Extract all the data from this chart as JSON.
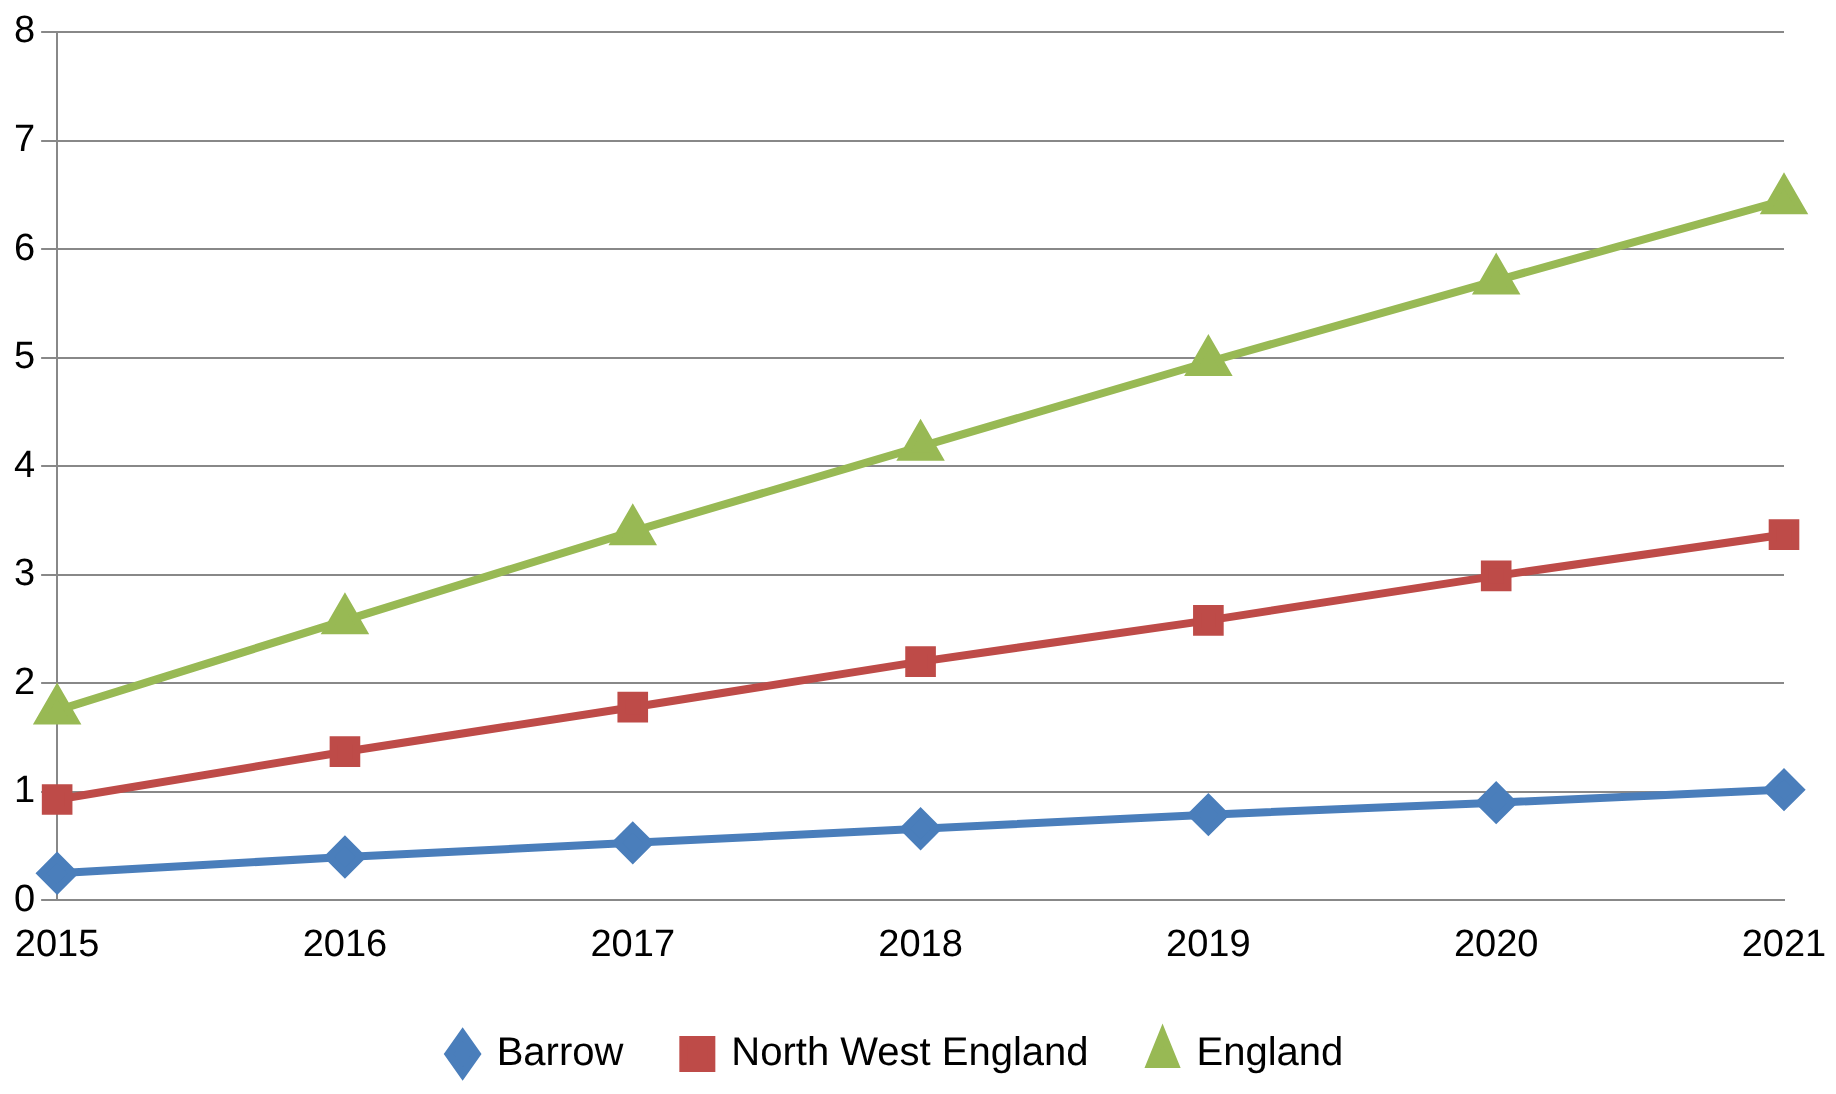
{
  "chart_data": {
    "type": "line",
    "categories": [
      "2015",
      "2016",
      "2017",
      "2018",
      "2019",
      "2020",
      "2021"
    ],
    "series": [
      {
        "name": "Barrow",
        "color": "#4a7ebb",
        "marker": "diamond",
        "values": [
          0.25,
          0.4,
          0.53,
          0.66,
          0.79,
          0.9,
          1.02
        ]
      },
      {
        "name": "North West England",
        "color": "#be4b48",
        "marker": "square",
        "values": [
          0.93,
          1.37,
          1.78,
          2.2,
          2.58,
          2.99,
          3.37
        ]
      },
      {
        "name": "England",
        "color": "#98b954",
        "marker": "triangle",
        "values": [
          1.75,
          2.58,
          3.4,
          4.18,
          4.96,
          5.71,
          6.45
        ]
      }
    ],
    "ylim": [
      0,
      8
    ],
    "yticks": [
      0,
      1,
      2,
      3,
      4,
      5,
      6,
      7,
      8
    ],
    "grid": "y",
    "legend": "bottom",
    "line_style": "solid"
  }
}
